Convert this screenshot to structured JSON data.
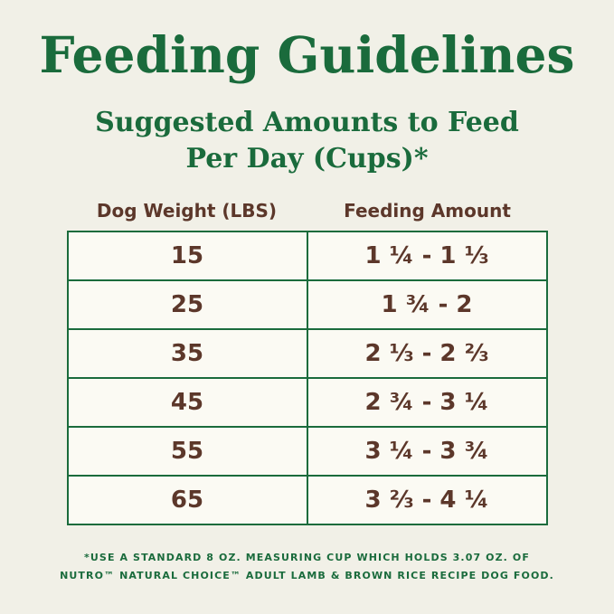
{
  "page": {
    "title": "Feeding Guidelines",
    "subtitle_line1": "Suggested Amounts to Feed",
    "subtitle_line2": "Per Day (Cups)*"
  },
  "table": {
    "columns": {
      "weight": "Dog Weight (LBS)",
      "amount": "Feeding Amount"
    },
    "rows": [
      {
        "weight": "15",
        "amount": "1 ¼ - 1 ⅓"
      },
      {
        "weight": "25",
        "amount": "1 ¾ - 2"
      },
      {
        "weight": "35",
        "amount": "2 ⅓ - 2 ⅔"
      },
      {
        "weight": "45",
        "amount": "2 ¾ - 3 ¼"
      },
      {
        "weight": "55",
        "amount": "3 ¼ - 3 ¾"
      },
      {
        "weight": "65",
        "amount": "3 ⅔ - 4 ¼"
      }
    ]
  },
  "footnote": {
    "line1": "*USE A STANDARD 8 OZ. MEASURING CUP WHICH HOLDS 3.07 OZ. OF",
    "line2": "NUTRO™ NATURAL CHOICE™ ADULT LAMB & BROWN RICE RECIPE DOG FOOD."
  },
  "colors": {
    "green": "#1a6b3c",
    "brown": "#5c372a",
    "background": "#f1f0e7",
    "table_background": "#fbfaf3"
  }
}
